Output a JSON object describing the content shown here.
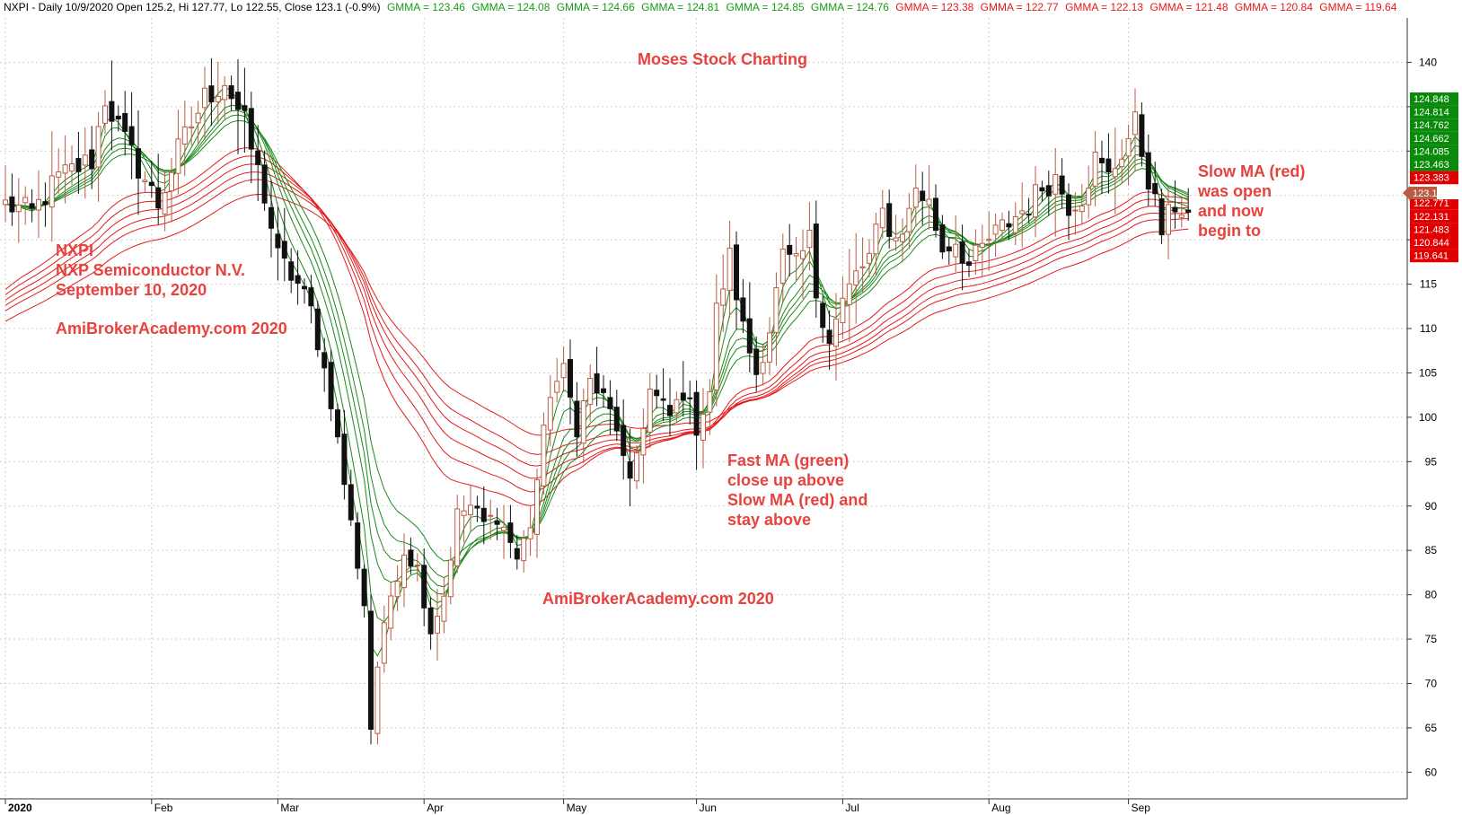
{
  "chart_data": {
    "type": "candlestick",
    "header": {
      "prefix": "NXPI - Daily 10/9/2020 Open 125.2, Hi 127.77, Lo 122.55, Close 123.1 (-0.9%)",
      "gmma": [
        {
          "label": "GMMA = 123.46",
          "color": "#1a9a1a"
        },
        {
          "label": "GMMA = 124.08",
          "color": "#1a9a1a"
        },
        {
          "label": "GMMA = 124.66",
          "color": "#1a9a1a"
        },
        {
          "label": "GMMA = 124.81",
          "color": "#1a9a1a"
        },
        {
          "label": "GMMA = 124.85",
          "color": "#1a9a1a"
        },
        {
          "label": "GMMA = 124.76",
          "color": "#1a9a1a"
        },
        {
          "label": "GMMA = 123.38",
          "color": "#e41b1b"
        },
        {
          "label": "GMMA = 122.77",
          "color": "#e41b1b"
        },
        {
          "label": "GMMA = 122.13",
          "color": "#e41b1b"
        },
        {
          "label": "GMMA = 121.48",
          "color": "#e41b1b"
        },
        {
          "label": "GMMA = 120.84",
          "color": "#e41b1b"
        },
        {
          "label": "GMMA = 119.64",
          "color": "#e41b1b"
        }
      ]
    },
    "ylim": [
      57,
      145
    ],
    "yticks": [
      60,
      65,
      70,
      75,
      80,
      85,
      90,
      95,
      100,
      105,
      110,
      115,
      120,
      125,
      130,
      135,
      140
    ],
    "grid": true,
    "months": [
      {
        "label": "2020",
        "day": 0,
        "bold": true
      },
      {
        "label": "Feb",
        "day": 22
      },
      {
        "label": "Mar",
        "day": 41
      },
      {
        "label": "Apr",
        "day": 63
      },
      {
        "label": "May",
        "day": 84
      },
      {
        "label": "Jun",
        "day": 104
      },
      {
        "label": "Jul",
        "day": 126
      },
      {
        "label": "Aug",
        "day": 148
      },
      {
        "label": "Sep",
        "day": 169
      }
    ],
    "keypoints": [
      [
        0,
        124
      ],
      [
        4,
        123
      ],
      [
        8,
        127
      ],
      [
        13,
        129
      ],
      [
        15,
        136
      ],
      [
        18,
        131
      ],
      [
        23,
        124
      ],
      [
        26,
        130
      ],
      [
        30,
        136
      ],
      [
        33,
        138
      ],
      [
        36,
        133
      ],
      [
        39,
        125
      ],
      [
        41,
        118
      ],
      [
        44,
        115
      ],
      [
        46,
        112
      ],
      [
        49,
        102
      ],
      [
        52,
        88
      ],
      [
        54,
        79
      ],
      [
        55,
        65
      ],
      [
        56,
        72
      ],
      [
        58,
        80
      ],
      [
        60,
        85
      ],
      [
        62,
        83
      ],
      [
        64,
        76
      ],
      [
        66,
        80
      ],
      [
        68,
        89
      ],
      [
        70,
        90
      ],
      [
        72,
        88
      ],
      [
        74,
        89
      ],
      [
        76,
        86
      ],
      [
        77,
        84
      ],
      [
        79,
        88
      ],
      [
        82,
        103
      ],
      [
        84,
        105
      ],
      [
        86,
        99
      ],
      [
        88,
        104
      ],
      [
        90,
        102
      ],
      [
        92,
        99
      ],
      [
        93,
        95
      ],
      [
        94,
        92
      ],
      [
        95,
        96
      ],
      [
        97,
        103
      ],
      [
        100,
        100
      ],
      [
        102,
        103
      ],
      [
        104,
        99
      ],
      [
        106,
        103
      ],
      [
        107,
        112
      ],
      [
        109,
        118
      ],
      [
        111,
        110
      ],
      [
        113,
        105
      ],
      [
        115,
        110
      ],
      [
        117,
        118
      ],
      [
        119,
        117
      ],
      [
        121,
        120
      ],
      [
        122,
        114
      ],
      [
        124,
        109
      ],
      [
        126,
        113
      ],
      [
        128,
        116
      ],
      [
        130,
        118
      ],
      [
        132,
        123
      ],
      [
        134,
        120
      ],
      [
        136,
        123
      ],
      [
        137,
        126
      ],
      [
        139,
        124
      ],
      [
        141,
        119
      ],
      [
        143,
        120
      ],
      [
        145,
        117
      ],
      [
        148,
        120
      ],
      [
        151,
        122
      ],
      [
        154,
        124
      ],
      [
        156,
        126
      ],
      [
        158,
        127
      ],
      [
        160,
        124
      ],
      [
        162,
        125
      ],
      [
        164,
        129
      ],
      [
        166,
        127
      ],
      [
        168,
        130
      ],
      [
        170,
        133
      ],
      [
        171,
        130
      ],
      [
        173,
        124
      ],
      [
        174,
        121
      ],
      [
        176,
        124
      ],
      [
        178,
        123.1
      ]
    ],
    "ema_fast": [
      3,
      5,
      8,
      10,
      12,
      15
    ],
    "ema_slow": [
      30,
      35,
      40,
      45,
      50,
      60
    ],
    "last_day": 178,
    "right_labels_green": [
      "124.848",
      "124.814",
      "124.762",
      "124.662",
      "124.085",
      "123.463"
    ],
    "right_labels_red": [
      "123.383",
      "122.771",
      "122.131",
      "121.483",
      "120.844",
      "119.641"
    ],
    "current_label": "123.1",
    "current_value": 123.1,
    "annotations": {
      "title": "Moses Stock Charting",
      "company_lines": [
        "NXPI",
        "NXP Semiconductor N.V.",
        "September 10, 2020"
      ],
      "watermark1": "AmiBrokerAcademy.com 2020",
      "watermark2": "AmiBrokerAcademy.com  2020",
      "fast_lines": [
        "Fast MA (green)",
        "close up above",
        "Slow MA (red) and",
        "stay above"
      ],
      "slow_lines": [
        "Slow MA (red)",
        "was open",
        "and now",
        "begin to"
      ]
    }
  }
}
